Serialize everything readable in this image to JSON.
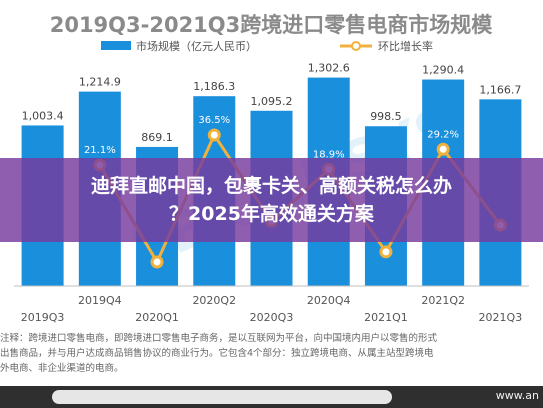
{
  "chart_data": {
    "type": "bar",
    "title": "2019Q3-2021Q3跨境进口零售电商市场规模",
    "categories": [
      "2019Q3",
      "2019Q4",
      "2020Q1",
      "2020Q2",
      "2020Q3",
      "2020Q4",
      "2021Q1",
      "2021Q2",
      "2021Q3"
    ],
    "series": [
      {
        "name": "市场规模（亿元人民币）",
        "kind": "bar",
        "color": "#1a8fdc",
        "values": [
          1003.4,
          1214.9,
          869.1,
          1186.3,
          1095.2,
          1302.6,
          998.5,
          1290.4,
          1166.7
        ],
        "labels": [
          "1,003.4",
          "1,214.9",
          "869.1",
          "1,186.3",
          "1,095.2",
          "1,302.6",
          "998.5",
          "1,290.4",
          "1,166.7"
        ]
      },
      {
        "name": "环比增长率",
        "kind": "line",
        "color": "#f0b23c",
        "values": [
          null,
          21.1,
          -28.5,
          36.5,
          -7.7,
          18.9,
          -23.3,
          29.2,
          -9.6
        ],
        "labels": [
          "",
          "21.1%",
          "",
          "36.5%",
          "",
          "18.9%",
          "",
          "29.2%",
          ""
        ]
      }
    ],
    "ylim": [
      0,
      1400
    ],
    "legend_position": "top",
    "grid": false
  },
  "note_lines": [
    "注释：跨境进口零售电商，即跨境进口零售电子商务，是以互联网为平台，向中国境内用户以零售的形式",
    "出售商品，并与用户达成商品销售协议的商业行为。它包含4个部分：独立跨境电商、从属主站型跨境电",
    "外电商、非企业渠道的电商。"
  ],
  "watermark": "EBRAINSYS",
  "banner": {
    "line1": "迪拜直邮中国，包裹卡关、高额关税怎么办",
    "line2": "？2025年高效通关方案"
  },
  "footer_url": "www.an",
  "colors": {
    "bar": "#1a8fdc",
    "line": "#f0b23c",
    "banner": "#763a9e"
  }
}
